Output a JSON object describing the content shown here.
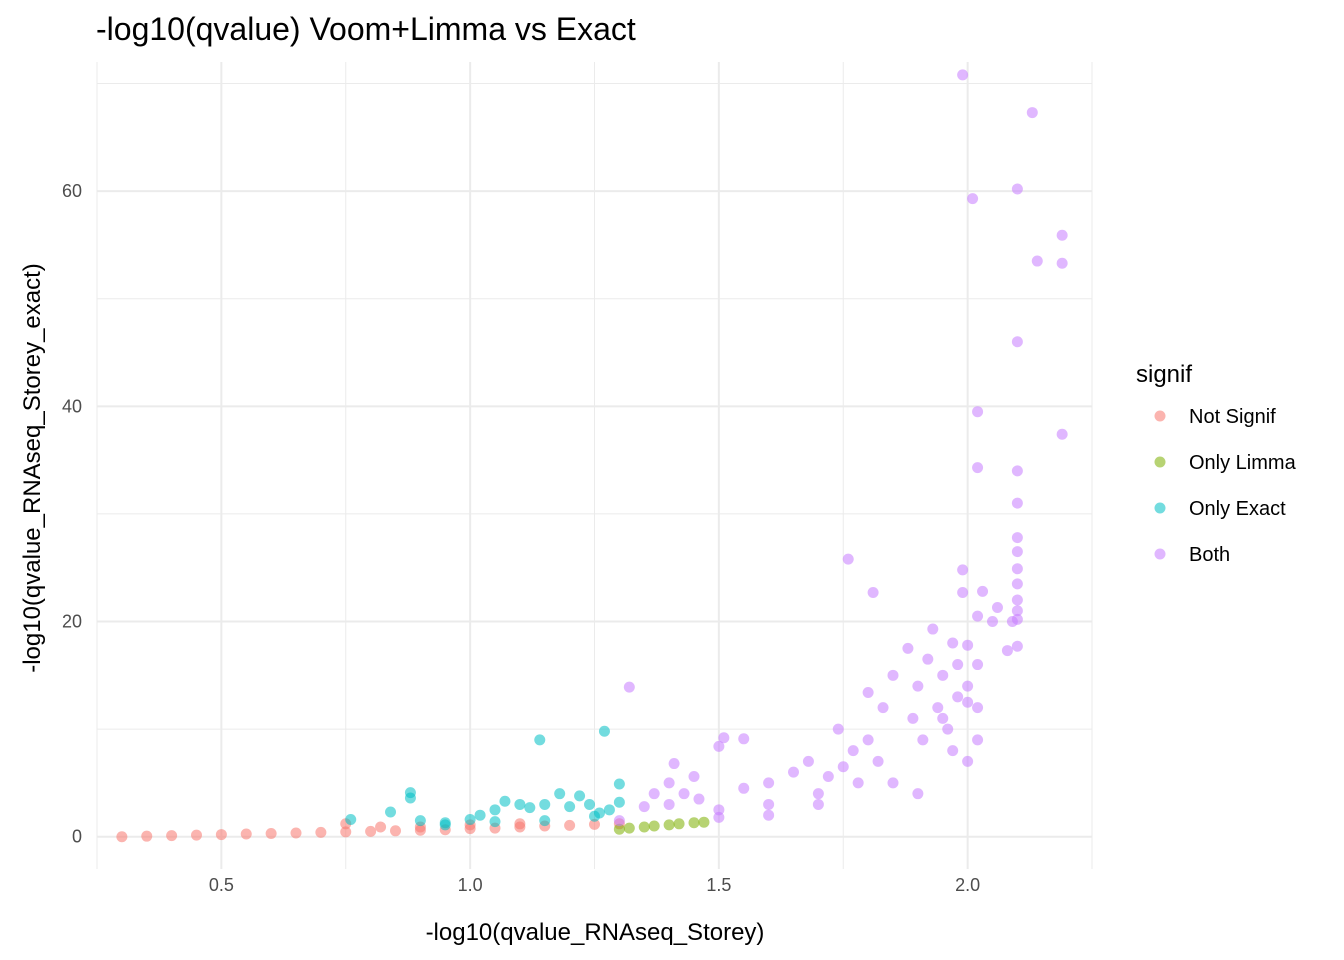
{
  "chart_data": {
    "type": "scatter",
    "title": "-log10(qvalue) Voom+Limma vs Exact",
    "xlabel": "-log10(qvalue_RNAseq_Storey)",
    "ylabel": "-log10(qvalue_RNAseq_Storey_exact)",
    "xlim": [
      0.25,
      2.25
    ],
    "ylim": [
      -3,
      72
    ],
    "x_ticks": [
      0.5,
      1.0,
      1.5,
      2.0
    ],
    "x_tick_labels": [
      "0.5",
      "1.0",
      "1.5",
      "2.0"
    ],
    "y_ticks": [
      0,
      20,
      40,
      60
    ],
    "y_tick_labels": [
      "0",
      "20",
      "40",
      "60"
    ],
    "grid": true,
    "legend": {
      "title": "signif",
      "position": "right",
      "entries": [
        {
          "label": "Not Signif",
          "color": "#F8766D"
        },
        {
          "label": "Only Limma",
          "color": "#7CAE00"
        },
        {
          "label": "Only Exact",
          "color": "#00BFC4"
        },
        {
          "label": "Both",
          "color": "#C77CFF"
        }
      ]
    },
    "series": [
      {
        "name": "Not Signif",
        "color": "#F8766D",
        "points": [
          [
            0.3,
            0.0
          ],
          [
            0.35,
            0.05
          ],
          [
            0.4,
            0.1
          ],
          [
            0.45,
            0.15
          ],
          [
            0.5,
            0.2
          ],
          [
            0.55,
            0.25
          ],
          [
            0.6,
            0.3
          ],
          [
            0.65,
            0.35
          ],
          [
            0.7,
            0.4
          ],
          [
            0.75,
            0.45
          ],
          [
            0.8,
            0.5
          ],
          [
            0.85,
            0.55
          ],
          [
            0.9,
            0.6
          ],
          [
            0.95,
            0.65
          ],
          [
            1.0,
            0.75
          ],
          [
            1.05,
            0.8
          ],
          [
            1.1,
            0.9
          ],
          [
            1.15,
            1.0
          ],
          [
            1.2,
            1.05
          ],
          [
            1.25,
            1.15
          ],
          [
            1.3,
            1.2
          ],
          [
            0.75,
            1.2
          ],
          [
            0.82,
            0.9
          ],
          [
            0.9,
            0.9
          ],
          [
            1.0,
            1.1
          ],
          [
            1.1,
            1.2
          ]
        ]
      },
      {
        "name": "Only Limma",
        "color": "#7CAE00",
        "points": [
          [
            1.3,
            0.7
          ],
          [
            1.32,
            0.8
          ],
          [
            1.35,
            0.9
          ],
          [
            1.37,
            1.0
          ],
          [
            1.4,
            1.1
          ],
          [
            1.42,
            1.2
          ],
          [
            1.45,
            1.3
          ],
          [
            1.47,
            1.35
          ]
        ]
      },
      {
        "name": "Only Exact",
        "color": "#00BFC4",
        "points": [
          [
            0.76,
            1.6
          ],
          [
            0.84,
            2.3
          ],
          [
            0.88,
            4.1
          ],
          [
            0.88,
            3.6
          ],
          [
            0.9,
            1.5
          ],
          [
            0.95,
            1.3
          ],
          [
            1.0,
            1.6
          ],
          [
            1.02,
            2.0
          ],
          [
            1.05,
            2.5
          ],
          [
            1.07,
            3.3
          ],
          [
            1.1,
            3.0
          ],
          [
            1.14,
            9.0
          ],
          [
            1.12,
            2.7
          ],
          [
            1.15,
            3.0
          ],
          [
            1.2,
            2.8
          ],
          [
            1.18,
            4.0
          ],
          [
            1.22,
            3.8
          ],
          [
            1.24,
            3.0
          ],
          [
            1.26,
            2.2
          ],
          [
            1.27,
            9.8
          ],
          [
            1.3,
            4.9
          ],
          [
            1.28,
            2.5
          ],
          [
            1.3,
            3.2
          ],
          [
            0.95,
            1.1
          ],
          [
            1.05,
            1.4
          ],
          [
            1.15,
            1.5
          ],
          [
            1.25,
            1.9
          ]
        ]
      },
      {
        "name": "Both",
        "color": "#C77CFF",
        "points": [
          [
            1.32,
            13.9
          ],
          [
            1.3,
            1.5
          ],
          [
            1.35,
            2.8
          ],
          [
            1.37,
            4.0
          ],
          [
            1.4,
            3.0
          ],
          [
            1.4,
            5.0
          ],
          [
            1.41,
            6.8
          ],
          [
            1.43,
            4.0
          ],
          [
            1.45,
            5.6
          ],
          [
            1.46,
            3.5
          ],
          [
            1.5,
            8.4
          ],
          [
            1.51,
            9.2
          ],
          [
            1.55,
            9.1
          ],
          [
            1.5,
            2.5
          ],
          [
            1.55,
            4.5
          ],
          [
            1.6,
            5.0
          ],
          [
            1.6,
            3.0
          ],
          [
            1.65,
            6.0
          ],
          [
            1.68,
            7.0
          ],
          [
            1.7,
            4.0
          ],
          [
            1.72,
            5.6
          ],
          [
            1.74,
            10.0
          ],
          [
            1.75,
            6.5
          ],
          [
            1.77,
            8.0
          ],
          [
            1.78,
            5.0
          ],
          [
            1.8,
            9.0
          ],
          [
            1.82,
            7.0
          ],
          [
            1.76,
            25.8
          ],
          [
            1.81,
            22.7
          ],
          [
            1.8,
            13.4
          ],
          [
            1.83,
            12.0
          ],
          [
            1.85,
            15.0
          ],
          [
            1.88,
            17.5
          ],
          [
            1.9,
            14.0
          ],
          [
            1.91,
            9.0
          ],
          [
            1.92,
            16.5
          ],
          [
            1.93,
            19.3
          ],
          [
            1.95,
            15.0
          ],
          [
            1.95,
            11.0
          ],
          [
            1.97,
            18.0
          ],
          [
            1.98,
            16.0
          ],
          [
            1.99,
            24.8
          ],
          [
            1.99,
            22.7
          ],
          [
            2.0,
            17.8
          ],
          [
            1.99,
            70.8
          ],
          [
            2.01,
            59.3
          ],
          [
            2.02,
            39.5
          ],
          [
            2.02,
            34.3
          ],
          [
            2.03,
            22.8
          ],
          [
            2.02,
            20.5
          ],
          [
            2.02,
            16.0
          ],
          [
            2.02,
            12.0
          ],
          [
            2.02,
            9.0
          ],
          [
            2.0,
            7.0
          ],
          [
            2.05,
            20.0
          ],
          [
            2.06,
            21.3
          ],
          [
            2.08,
            17.3
          ],
          [
            2.09,
            20.0
          ],
          [
            2.1,
            60.2
          ],
          [
            2.1,
            46.0
          ],
          [
            2.1,
            34.0
          ],
          [
            2.1,
            31.0
          ],
          [
            2.1,
            27.8
          ],
          [
            2.1,
            26.5
          ],
          [
            2.1,
            24.9
          ],
          [
            2.1,
            23.5
          ],
          [
            2.1,
            22.0
          ],
          [
            2.1,
            21.0
          ],
          [
            2.1,
            20.2
          ],
          [
            2.1,
            17.7
          ],
          [
            2.13,
            67.3
          ],
          [
            2.14,
            53.5
          ],
          [
            2.19,
            55.9
          ],
          [
            2.19,
            53.3
          ],
          [
            2.19,
            37.4
          ],
          [
            1.9,
            4.0
          ],
          [
            1.85,
            5.0
          ],
          [
            1.7,
            3.0
          ],
          [
            1.6,
            2.0
          ],
          [
            1.5,
            1.8
          ],
          [
            1.96,
            10.0
          ],
          [
            1.94,
            12.0
          ],
          [
            1.98,
            13.0
          ],
          [
            2.0,
            14.0
          ],
          [
            2.0,
            12.5
          ],
          [
            1.97,
            8.0
          ],
          [
            1.89,
            11.0
          ]
        ]
      }
    ]
  }
}
